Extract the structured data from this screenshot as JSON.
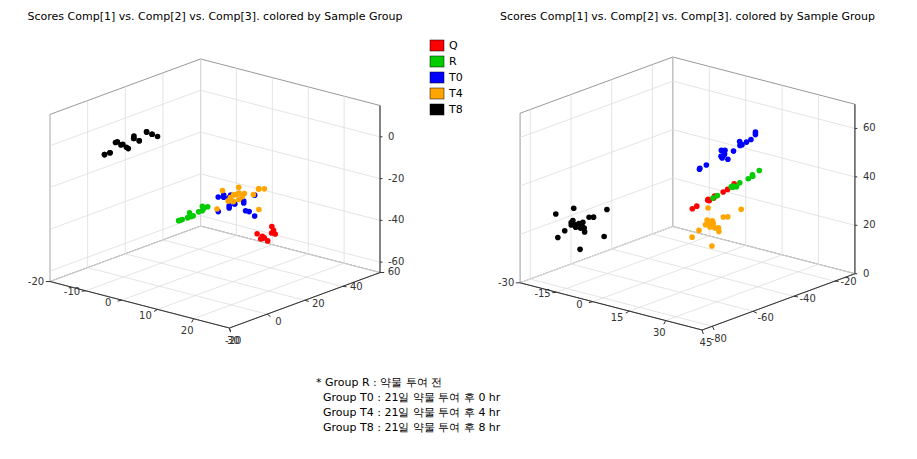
{
  "chart_data": [
    {
      "type": "scatter3d",
      "title": "Scores Comp[1] vs. Comp[2] vs. Comp[3]. colored by Sample Group",
      "xlim": [
        -20,
        30
      ],
      "xticks": [
        -20,
        -10,
        0,
        10,
        20,
        30
      ],
      "ylim": [
        -20,
        60
      ],
      "yticks": [
        -20,
        0,
        20,
        40,
        60
      ],
      "zlim": [
        -65,
        15
      ],
      "zticks": [
        -60,
        -40,
        -20,
        0
      ],
      "grid": true,
      "legend": "upper right",
      "annotations": [
        "* Group R : 약물 투여 전",
        "  Group T0 : 21일 약물 투여 후 0 hr",
        "  Group T4 : 21일 약물 투여 후 4 hr",
        "  Group T8 : 21일 약물 투여 후 8 hr"
      ],
      "series": [
        {
          "name": "Q",
          "color": "#FF0000",
          "x": [
            2,
            4,
            5,
            3,
            1,
            4,
            2,
            3,
            5,
            3
          ],
          "y": [
            50,
            52,
            48,
            54,
            50,
            53,
            51,
            49,
            52,
            50
          ],
          "z": [
            -58,
            -55,
            -57,
            -53,
            -56,
            -54,
            -58,
            -56,
            -55,
            -57
          ]
        },
        {
          "name": "R",
          "color": "#00CC00",
          "x": [
            -10,
            -8,
            -12,
            -9,
            -11,
            -7,
            -13,
            -10,
            -9,
            -11,
            -8,
            -12
          ],
          "y": [
            36,
            38,
            34,
            40,
            37,
            39,
            35,
            37,
            38,
            36,
            39,
            35
          ],
          "z": [
            -48,
            -45,
            -50,
            -44,
            -47,
            -43,
            -51,
            -48,
            -46,
            -49,
            -44,
            -50
          ]
        },
        {
          "name": "T0",
          "color": "#0000FF",
          "x": [
            10,
            13,
            8,
            15,
            11,
            9,
            14,
            12,
            10,
            13,
            9,
            15,
            11,
            8,
            13,
            12
          ],
          "y": [
            18,
            20,
            16,
            22,
            19,
            17,
            21,
            15,
            18,
            20,
            17,
            22,
            19,
            16,
            21,
            14
          ],
          "z": [
            -28,
            -25,
            -31,
            -22,
            -27,
            -24,
            -30,
            -21,
            -29,
            -26,
            -23,
            -32,
            -27,
            -24,
            -30,
            -22
          ]
        },
        {
          "name": "T4",
          "color": "#FFA500",
          "x": [
            18,
            22,
            15,
            24,
            19,
            16,
            23,
            20,
            17,
            21,
            14,
            25,
            18,
            22,
            16,
            23,
            19,
            20
          ],
          "y": [
            5,
            8,
            2,
            10,
            6,
            3,
            9,
            4,
            7,
            1,
            11,
            5,
            8,
            2,
            6,
            9,
            3,
            7
          ],
          "z": [
            -18,
            -14,
            -22,
            -11,
            -17,
            -13,
            -21,
            -10,
            -16,
            -12,
            -20,
            -9,
            -15,
            -13,
            -19,
            -11,
            -17,
            -14
          ]
        },
        {
          "name": "T8",
          "color": "#000000",
          "x": [
            -5,
            -3,
            -8,
            -1,
            -6,
            -4,
            -9,
            -2,
            -7,
            0,
            -5,
            -3,
            -8,
            -1,
            -6,
            -4,
            -9,
            -2,
            -7,
            -5
          ],
          "y": [
            -8,
            -5,
            -11,
            -2,
            -9,
            -6,
            -12,
            -3,
            -10,
            -1,
            -7,
            -5,
            -11,
            -2,
            -8,
            -6,
            -12,
            -3,
            -9,
            -4
          ],
          "z": [
            2,
            5,
            -1,
            8,
            3,
            6,
            -2,
            9,
            4,
            7,
            1,
            5,
            -1,
            8,
            3,
            6,
            -2,
            9,
            4,
            6
          ]
        }
      ]
    },
    {
      "type": "scatter3d",
      "title": "Scores Comp[1] vs. Comp[2] vs. Comp[3]. colored by Sample Group",
      "xlim": [
        -30,
        45
      ],
      "xticks": [
        -30,
        -15,
        0,
        15,
        30,
        45
      ],
      "ylim": [
        -85,
        -10
      ],
      "yticks": [
        -80,
        -60,
        -40,
        -20
      ],
      "zlim": [
        0,
        70
      ],
      "zticks": [
        0,
        20,
        40,
        60
      ],
      "grid": true,
      "series": [
        {
          "name": "Q",
          "color": "#FF0000",
          "x": [
            28,
            31,
            25,
            33,
            29,
            27,
            32,
            26,
            30,
            28
          ],
          "y": [
            -62,
            -58,
            -66,
            -55,
            -63,
            -60,
            -57,
            -65,
            -61,
            -59
          ],
          "z": [
            42,
            45,
            39,
            48,
            43,
            41,
            46,
            40,
            44,
            42
          ]
        },
        {
          "name": "R",
          "color": "#00CC00",
          "x": [
            35,
            38,
            32,
            40,
            36,
            33,
            39,
            31,
            37,
            34,
            36,
            38
          ],
          "y": [
            -58,
            -54,
            -62,
            -51,
            -59,
            -56,
            -53,
            -63,
            -57,
            -55,
            -60,
            -52
          ],
          "z": [
            48,
            51,
            45,
            54,
            49,
            47,
            52,
            44,
            50,
            47,
            49,
            52
          ]
        },
        {
          "name": "T0",
          "color": "#0000FF",
          "x": [
            18,
            22,
            14,
            25,
            19,
            15,
            23,
            12,
            21,
            17,
            20,
            24,
            13,
            22,
            18,
            16,
            21,
            25
          ],
          "y": [
            -42,
            -38,
            -46,
            -35,
            -43,
            -40,
            -37,
            -47,
            -41,
            -39,
            -44,
            -36,
            -48,
            -39,
            -43,
            -41,
            -38,
            -35
          ],
          "z": [
            52,
            56,
            48,
            60,
            53,
            50,
            57,
            46,
            54,
            49,
            55,
            58,
            47,
            56,
            51,
            53,
            57,
            61
          ]
        },
        {
          "name": "T4",
          "color": "#FFA500",
          "x": [
            -8,
            -4,
            -12,
            -1,
            -9,
            -6,
            -13,
            -3,
            -10,
            -7,
            -5,
            -11,
            -2,
            -8,
            -5,
            -10
          ],
          "y": [
            -18,
            -14,
            -22,
            -11,
            -19,
            -16,
            -13,
            -23,
            -17,
            -15,
            -20,
            -12,
            -24,
            -18,
            -15,
            -21
          ],
          "z": [
            8,
            12,
            4,
            15,
            9,
            6,
            13,
            3,
            10,
            7,
            11,
            5,
            14,
            9,
            12,
            7
          ]
        },
        {
          "name": "T8",
          "color": "#000000",
          "x": [
            -18,
            -14,
            -22,
            -11,
            -19,
            -16,
            -23,
            -12,
            -20,
            -17,
            -15,
            -21,
            -10,
            -18,
            -15,
            -20,
            -13,
            -22,
            -17,
            -19
          ],
          "y": [
            -72,
            -68,
            -76,
            -65,
            -73,
            -70,
            -67,
            -77,
            -71,
            -69,
            -74,
            -66,
            -78,
            -72,
            -69,
            -75,
            -64,
            -77,
            -70,
            -73
          ],
          "z": [
            22,
            26,
            18,
            29,
            23,
            20,
            27,
            16,
            24,
            21,
            25,
            19,
            28,
            23,
            26,
            21,
            17,
            28,
            22,
            24
          ]
        }
      ]
    }
  ]
}
